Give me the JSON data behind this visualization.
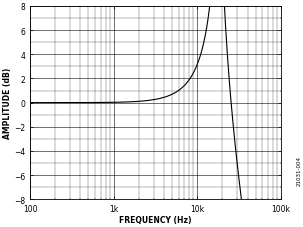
{
  "title": "",
  "xlabel": "FREQUENCY (Hz)",
  "ylabel": "AMPLITUDE (dB)",
  "xlim": [
    100,
    100000
  ],
  "ylim": [
    -8,
    8
  ],
  "yticks": [
    -8,
    -6,
    -4,
    -2,
    0,
    2,
    4,
    6,
    8
  ],
  "xtick_labels": [
    "100",
    "1k",
    "10k",
    "100k"
  ],
  "xtick_vals": [
    100,
    1000,
    10000,
    100000
  ],
  "line_color": "#000000",
  "bg_color": "#ffffff",
  "grid_color": "#888888",
  "resonance_freq": 18000,
  "damping": 0.055,
  "label_fontsize": 5.5,
  "tick_fontsize": 5.5,
  "watermark": "21031-004",
  "figsize": [
    3.03,
    2.28
  ],
  "dpi": 100
}
